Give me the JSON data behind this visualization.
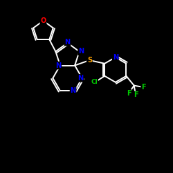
{
  "background_color": "#000000",
  "atom_colors": {
    "C": "#ffffff",
    "N": "#0000ff",
    "O": "#ff0000",
    "S": "#ffa500",
    "F": "#00cc00",
    "Cl": "#00cc00"
  },
  "bond_color": "#ffffff",
  "figsize": [
    2.5,
    2.5
  ],
  "dpi": 100,
  "xlim": [
    0,
    10
  ],
  "ylim": [
    0,
    10
  ]
}
